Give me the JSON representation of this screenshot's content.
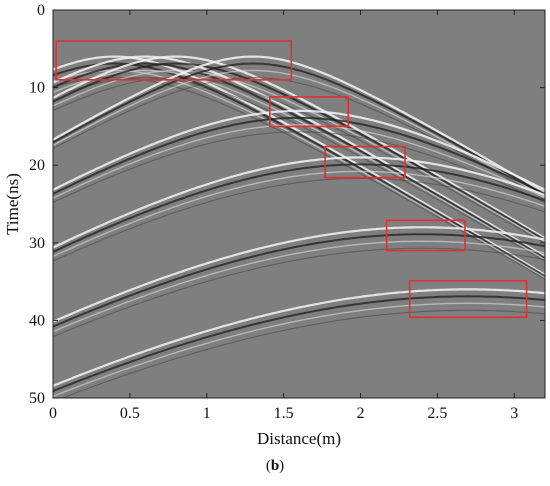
{
  "chart_data": {
    "type": "heatmap",
    "title": "",
    "xlabel": "Distance(m)",
    "ylabel": "Time(ns)",
    "xlim": [
      0,
      3.2
    ],
    "ylim": [
      0,
      50
    ],
    "y_inverted": true,
    "xticks": [
      0,
      0.5,
      1,
      1.5,
      2,
      2.5,
      3
    ],
    "xtick_labels": [
      "0",
      "0.5",
      "1",
      "1.5",
      "2",
      "2.5",
      "3"
    ],
    "yticks": [
      0,
      10,
      20,
      30,
      40,
      50
    ],
    "ytick_labels": [
      "0",
      "10",
      "20",
      "30",
      "40",
      "50"
    ],
    "background_color": "#7f7f7f",
    "hyperbolas": [
      {
        "apex_x": 0.4,
        "apex_t": 6.0
      },
      {
        "apex_x": 0.6,
        "apex_t": 6.0
      },
      {
        "apex_x": 0.8,
        "apex_t": 6.0
      },
      {
        "apex_x": 1.3,
        "apex_t": 6.0
      },
      {
        "apex_x": 1.6,
        "apex_t": 13.0
      },
      {
        "apex_x": 2.0,
        "apex_t": 19.0
      },
      {
        "apex_x": 2.4,
        "apex_t": 28.0
      },
      {
        "apex_x": 2.7,
        "apex_t": 36.0
      }
    ],
    "annotation_boxes": [
      {
        "x0": 0.02,
        "x1": 1.55,
        "t0": 4.0,
        "t1": 9.0
      },
      {
        "x0": 1.41,
        "x1": 1.92,
        "t0": 11.2,
        "t1": 15.0
      },
      {
        "x0": 1.77,
        "x1": 2.29,
        "t0": 17.6,
        "t1": 21.6
      },
      {
        "x0": 2.17,
        "x1": 2.68,
        "t0": 27.1,
        "t1": 31.0
      },
      {
        "x0": 2.32,
        "x1": 3.08,
        "t0": 34.9,
        "t1": 39.6
      }
    ],
    "box_color": "#e03030"
  },
  "caption": {
    "open": "(",
    "label": "b",
    "close": ")"
  }
}
